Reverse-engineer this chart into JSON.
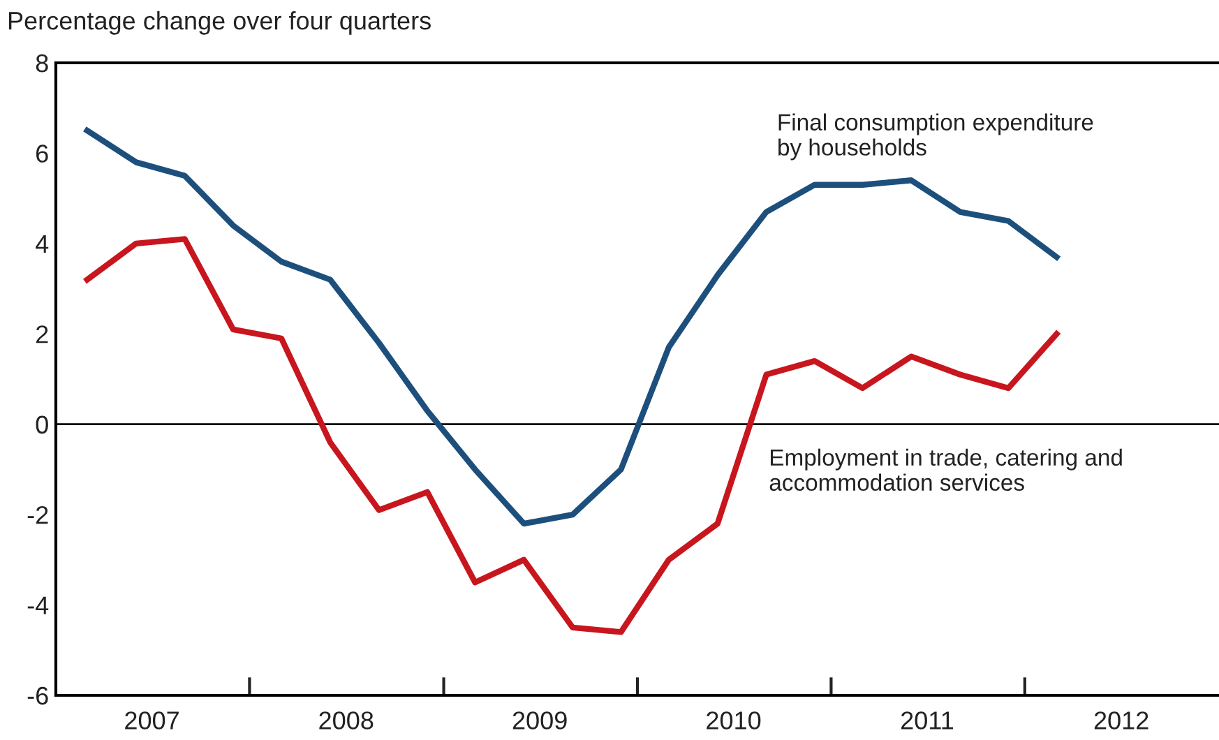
{
  "chart_data": {
    "type": "line",
    "ylabel": "Percentage change over four quarters",
    "x": [
      "2007-03",
      "2007-06",
      "2007-09",
      "2007-12",
      "2008-03",
      "2008-06",
      "2008-09",
      "2008-12",
      "2009-03",
      "2009-06",
      "2009-09",
      "2009-12",
      "2010-03",
      "2010-06",
      "2010-09",
      "2010-12",
      "2011-03",
      "2011-06",
      "2011-09",
      "2011-12",
      "2012-03"
    ],
    "series": [
      {
        "name": "Final consumption expenditure\nby households",
        "color": "#1d4f7c",
        "values": [
          6.5,
          5.8,
          5.5,
          4.4,
          3.6,
          3.2,
          1.8,
          0.3,
          -1.0,
          -2.2,
          -2.0,
          -1.0,
          1.7,
          3.3,
          4.7,
          5.3,
          5.3,
          5.4,
          4.7,
          4.5,
          3.7
        ]
      },
      {
        "name": "Employment in trade, catering and\naccommodation services",
        "color": "#c8161e",
        "values": [
          3.2,
          4.0,
          4.1,
          2.1,
          1.9,
          -0.4,
          -1.9,
          -1.5,
          -3.5,
          -3.0,
          -4.5,
          -4.6,
          -3.0,
          -2.2,
          1.1,
          1.4,
          0.8,
          1.5,
          1.1,
          0.8,
          2.0
        ]
      }
    ],
    "xlim": [
      "2007-01",
      "2013-01"
    ],
    "xticks": [
      {
        "value": "2007-07",
        "label": "2007"
      },
      {
        "value": "2008-01",
        "label": null
      },
      {
        "value": "2008-07",
        "label": "2008"
      },
      {
        "value": "2009-01",
        "label": null
      },
      {
        "value": "2009-07",
        "label": "2009"
      },
      {
        "value": "2010-01",
        "label": null
      },
      {
        "value": "2010-07",
        "label": "2010"
      },
      {
        "value": "2011-01",
        "label": null
      },
      {
        "value": "2011-07",
        "label": "2011"
      },
      {
        "value": "2012-01",
        "label": null
      },
      {
        "value": "2012-07",
        "label": "2012"
      }
    ],
    "ylim": [
      -6,
      8
    ],
    "yticks": [
      -6,
      -4,
      -2,
      0,
      2,
      4,
      6,
      8
    ],
    "ref_lines": [
      {
        "axis": "y",
        "value": 0,
        "color": "#000000"
      }
    ],
    "grid": false,
    "legend": false,
    "marker": "none",
    "line_style": "solid"
  }
}
